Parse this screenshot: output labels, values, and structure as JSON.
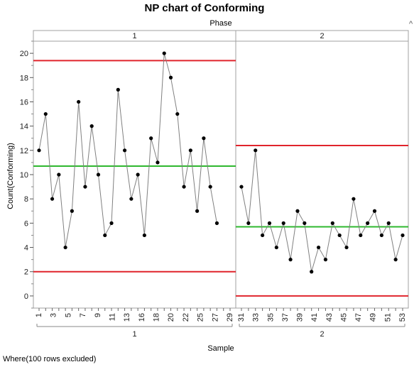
{
  "title": "NP chart of Conforming",
  "phase_title": "Phase",
  "footer_note": "Where(100 rows excluded)",
  "corner_mark": "^",
  "colors": {
    "limits": "#e0242c",
    "center": "#2fb82f",
    "line": "#808080",
    "point": "#000000",
    "frame": "#a0a0a0"
  },
  "chart_data": {
    "type": "line",
    "title": "NP chart of Conforming",
    "xlabel": "Sample",
    "ylabel": "Count(Conforming)",
    "ylim": [
      -1,
      21
    ],
    "yticks": [
      0,
      2,
      4,
      6,
      8,
      10,
      12,
      14,
      16,
      18,
      20
    ],
    "grid": false,
    "phases": [
      {
        "name": "1",
        "samples": [
          1,
          2,
          3,
          4,
          5,
          6,
          7,
          8,
          9,
          10,
          11,
          12,
          13,
          14,
          15,
          16,
          17,
          18,
          19,
          20,
          21,
          22,
          23,
          24,
          25,
          26,
          27,
          28,
          29,
          30
        ],
        "values": [
          12,
          15,
          8,
          10,
          4,
          7,
          16,
          9,
          14,
          10,
          5,
          6,
          17,
          12,
          8,
          10,
          5,
          13,
          11,
          20,
          18,
          15,
          9,
          12,
          7,
          13,
          9,
          6,
          null,
          null
        ],
        "ucl": 19.4,
        "center": 10.7,
        "lcl": 2.0,
        "tick_labels": [
          "1",
          "3",
          "5",
          "7",
          "9",
          "11",
          "13",
          "16",
          "18",
          "20",
          "22",
          "25",
          "27",
          "29"
        ]
      },
      {
        "name": "2",
        "samples": [
          31,
          32,
          33,
          34,
          35,
          36,
          37,
          38,
          39,
          40,
          41,
          42,
          43,
          44,
          45,
          46,
          47,
          48,
          49,
          50,
          51,
          52,
          53,
          54
        ],
        "values": [
          9,
          6,
          12,
          5,
          6,
          4,
          6,
          3,
          7,
          6,
          2,
          4,
          3,
          6,
          5,
          4,
          8,
          5,
          6,
          7,
          5,
          6,
          3,
          5
        ],
        "ucl": 12.4,
        "center": 5.7,
        "lcl": 0.0,
        "tick_labels": [
          "31",
          "33",
          "35",
          "37",
          "39",
          "41",
          "43",
          "45",
          "47",
          "49",
          "51",
          "53"
        ]
      }
    ]
  }
}
